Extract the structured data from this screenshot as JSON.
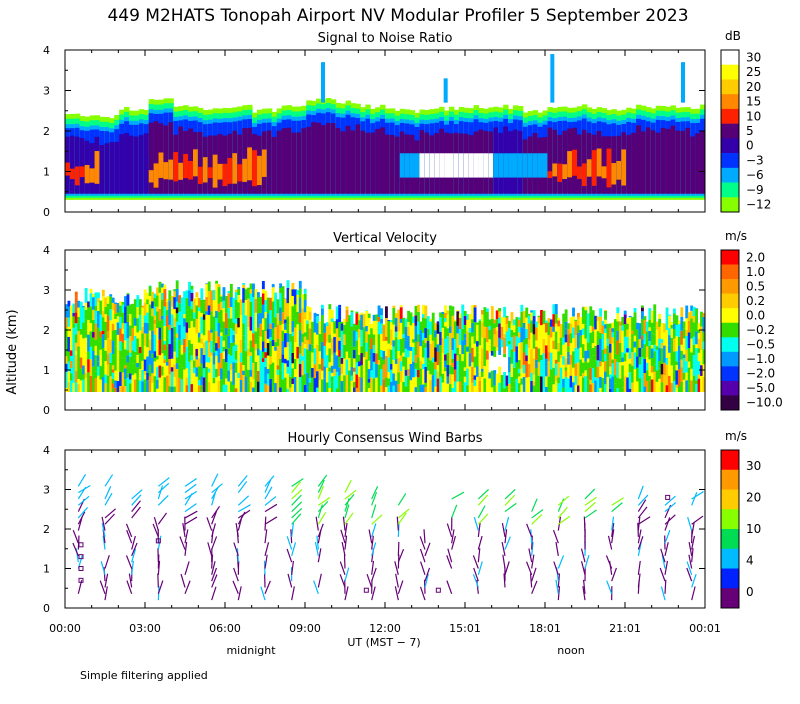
{
  "title": "449 M2HATS Tonopah Airport NV Modular Profiler  5 September 2023",
  "y_axis_label": "Altitude (km)",
  "x_axis_label": "UT  (MST − 7)",
  "x_ticks": [
    "00:00",
    "03:00",
    "06:00",
    "09:00",
    "12:00",
    "15:01",
    "18:01",
    "21:01",
    "00:01"
  ],
  "y_ticks": [
    "0",
    "1",
    "2",
    "3",
    "4"
  ],
  "day_labels": {
    "midnight": "midnight",
    "noon": "noon"
  },
  "footer": "Simple filtering applied",
  "chart_data": [
    {
      "type": "heatmap",
      "title": "Signal to Noise Ratio",
      "unit": "dB",
      "xlim": [
        0,
        24
      ],
      "ylim": [
        0,
        4
      ],
      "colorbar": {
        "labels": [
          "30",
          "25",
          "20",
          "15",
          "10",
          "5",
          "0",
          "−3",
          "−6",
          "−9",
          "−12"
        ],
        "colors": [
          "#ffffff",
          "#ffff00",
          "#ffcc00",
          "#ff8800",
          "#ff2200",
          "#550077",
          "#3300aa",
          "#0033ff",
          "#00aaff",
          "#00ff88",
          "#88ff00"
        ]
      },
      "description_fields": {
        "top_echo_km": [
          2.5,
          2.7
        ],
        "bottom_km": 0.3
      },
      "profile_top_km": [
        2.4,
        2.35,
        2.55,
        2.8,
        2.6,
        2.55,
        2.6,
        2.5,
        2.6,
        2.8,
        2.7,
        2.6,
        2.5,
        2.5,
        2.55,
        2.6,
        2.6,
        2.5,
        2.6,
        2.6,
        2.55,
        2.6,
        2.6,
        2.6
      ]
    },
    {
      "type": "heatmap",
      "title": "Vertical Velocity",
      "unit": "m/s",
      "xlim": [
        0,
        24
      ],
      "ylim": [
        0,
        4
      ],
      "colorbar": {
        "labels": [
          "2.0",
          "1.0",
          "0.5",
          "0.2",
          "0.0",
          "−0.2",
          "−0.5",
          "−1.0",
          "−2.0",
          "−5.0",
          "−10.0"
        ],
        "colors": [
          "#ff0000",
          "#ff6600",
          "#ff9900",
          "#ffcc00",
          "#ffff00",
          "#33dd00",
          "#00ffee",
          "#0099ff",
          "#0033ff",
          "#5500aa",
          "#330044"
        ]
      }
    },
    {
      "type": "wind_barbs",
      "title": "Hourly Consensus Wind Barbs",
      "unit": "m/s",
      "xlim": [
        0,
        24
      ],
      "ylim": [
        0,
        4
      ],
      "colorbar": {
        "labels": [
          "30",
          "20",
          "10",
          "4",
          "0"
        ],
        "colors": [
          "#ff0000",
          "#ff9900",
          "#ffcc00",
          "#88ff00",
          "#00dd55",
          "#00bbff",
          "#0022ff",
          "#660077"
        ]
      }
    }
  ]
}
